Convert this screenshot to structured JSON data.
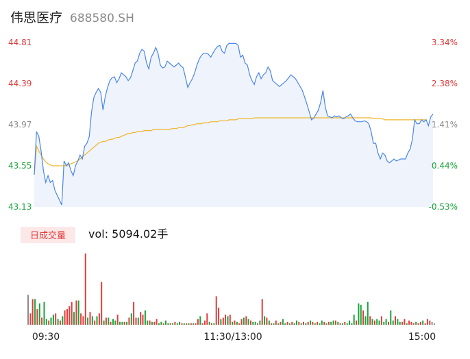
{
  "stock": {
    "name": "伟思医疗",
    "code": "688580.SH"
  },
  "volume_panel": {
    "badge": "日成交量",
    "vol_text": "vol: 5094.02手"
  },
  "colors": {
    "price_line": "#4a86e8",
    "avg_line": "#f0b429",
    "area_fill": "#eef3fc",
    "up": "#e23b3b",
    "down": "#1aa43b",
    "neutral": "#8a8a8a",
    "badge_bg": "#fde8e8"
  },
  "chart_data": [
    {
      "type": "line",
      "title": "",
      "x_ticks": [
        "09:30",
        "11:30/13:00",
        "15:00"
      ],
      "y_ticks_left": [
        "44.81",
        "44.39",
        "43.97",
        "43.55",
        "43.13"
      ],
      "y_ticks_right": [
        "3.34%",
        "2.38%",
        "1.41%",
        "0.44%",
        "-0.53%"
      ],
      "ylim": [
        43.13,
        44.81
      ],
      "series": [
        {
          "key": "price",
          "values": [
            43.46,
            43.9,
            43.85,
            43.7,
            43.5,
            43.38,
            43.45,
            43.38,
            43.4,
            43.3,
            43.25,
            43.2,
            43.15,
            43.6,
            43.55,
            43.58,
            43.5,
            43.45,
            43.55,
            43.6,
            43.66,
            43.62,
            43.75,
            43.78,
            43.85,
            44.1,
            44.25,
            44.3,
            44.34,
            44.3,
            44.12,
            44.26,
            44.35,
            44.42,
            44.45,
            44.46,
            44.4,
            44.44,
            44.5,
            44.48,
            44.46,
            44.42,
            44.45,
            44.52,
            44.6,
            44.62,
            44.7,
            44.74,
            44.72,
            44.6,
            44.54,
            44.66,
            44.7,
            44.76,
            44.7,
            44.58,
            44.55,
            44.56,
            44.62,
            44.6,
            44.58,
            44.56,
            44.58,
            44.6,
            44.57,
            44.55,
            44.45,
            44.35,
            44.4,
            44.44,
            44.5,
            44.58,
            44.64,
            44.68,
            44.7,
            44.7,
            44.69,
            44.66,
            44.7,
            44.74,
            44.77,
            44.78,
            44.72,
            44.7,
            44.78,
            44.8,
            44.8,
            44.8,
            44.8,
            44.78,
            44.66,
            44.68,
            44.6,
            44.58,
            44.48,
            44.42,
            44.38,
            44.46,
            44.5,
            44.44,
            44.48,
            44.5,
            44.56,
            44.52,
            44.42,
            44.4,
            44.38,
            44.36,
            44.38,
            44.4,
            44.42,
            44.45,
            44.48,
            44.46,
            44.44,
            44.4,
            44.36,
            44.32,
            44.25,
            44.18,
            44.1,
            44.02,
            44.04,
            44.08,
            44.12,
            44.2,
            44.32,
            44.15,
            44.06,
            44.05,
            44.04,
            44.06,
            44.05,
            44.06,
            44.04,
            44.03,
            44.05,
            44.06,
            44.08,
            44.04,
            44.01,
            44.0,
            44.0,
            44.0,
            44.01,
            44.0,
            43.98,
            43.9,
            43.78,
            43.78,
            43.68,
            43.62,
            43.68,
            43.66,
            43.6,
            43.58,
            43.6,
            43.62,
            43.6,
            43.61,
            43.62,
            43.62,
            43.62,
            43.68,
            43.72,
            43.82,
            44.02,
            43.98,
            43.98,
            44.02,
            44.0,
            44.02,
            43.96,
            44.05,
            44.08
          ]
        },
        {
          "key": "average",
          "values": [
            43.46,
            43.75,
            43.7,
            43.66,
            43.62,
            43.59,
            43.57,
            43.56,
            43.55,
            43.55,
            43.55,
            43.55,
            43.55,
            43.55,
            43.55,
            43.56,
            43.57,
            43.58,
            43.59,
            43.6,
            43.62,
            43.64,
            43.66,
            43.68,
            43.7,
            43.72,
            43.74,
            43.76,
            43.78,
            43.79,
            43.8,
            43.8,
            43.81,
            43.82,
            43.82,
            43.83,
            43.84,
            43.84,
            43.85,
            43.86,
            43.87,
            43.88,
            43.88,
            43.89,
            43.89,
            43.9,
            43.9,
            43.9,
            43.91,
            43.91,
            43.91,
            43.91,
            43.92,
            43.92,
            43.92,
            43.92,
            43.92,
            43.92,
            43.92,
            43.92,
            43.93,
            43.93,
            43.93,
            43.94,
            43.94,
            43.94,
            43.95,
            43.96,
            43.96,
            43.97,
            43.97,
            43.98,
            43.98,
            43.98,
            43.99,
            43.99,
            43.99,
            44.0,
            44.0,
            44.0,
            44.0,
            44.01,
            44.01,
            44.01,
            44.01,
            44.02,
            44.02,
            44.02,
            44.02,
            44.03,
            44.03,
            44.03,
            44.03,
            44.03,
            44.03,
            44.03,
            44.04,
            44.04,
            44.04,
            44.04,
            44.04,
            44.04,
            44.04,
            44.04,
            44.04,
            44.04,
            44.04,
            44.04,
            44.04,
            44.04,
            44.04,
            44.04,
            44.04,
            44.04,
            44.04,
            44.04,
            44.04,
            44.04,
            44.04,
            44.04,
            44.04,
            44.04,
            44.04,
            44.04,
            44.04,
            44.04,
            44.04,
            44.04,
            44.04,
            44.04,
            44.04,
            44.04,
            44.04,
            44.04,
            44.04,
            44.04,
            44.04,
            44.04,
            44.04,
            44.04,
            44.04,
            44.04,
            44.04,
            44.04,
            44.04,
            44.04,
            44.04,
            44.04,
            44.03,
            44.03,
            44.03,
            44.03,
            44.03,
            44.02,
            44.02,
            44.02,
            44.02,
            44.02,
            44.02,
            44.02,
            44.02,
            44.02,
            44.02,
            44.02,
            44.02,
            44.02,
            44.02,
            44.02,
            44.02,
            44.02,
            44.02,
            44.02
          ]
        }
      ]
    },
    {
      "type": "bar",
      "title": "",
      "volume": [
        0.42,
        0.16,
        0.36,
        0.36,
        0.22,
        0.3,
        0.1,
        0.32,
        0.08,
        0.06,
        0.1,
        0.14,
        0.16,
        0.08,
        0.06,
        0.12,
        0.2,
        0.22,
        0.26,
        0.32,
        0.18,
        0.34,
        0.34,
        0.16,
        0.12,
        1.0,
        0.1,
        0.18,
        0.12,
        0.06,
        0.12,
        0.16,
        0.6,
        0.06,
        0.1,
        0.1,
        0.04,
        0.08,
        0.06,
        0.14,
        0.04,
        0.04,
        0.04,
        0.04,
        0.1,
        0.16,
        0.32,
        0.1,
        0.1,
        0.18,
        0.14,
        0.2,
        0.06,
        0.06,
        0.04,
        0.04,
        0.08,
        0.02,
        0.04,
        0.02,
        0.06,
        0.02,
        0.02,
        0.02,
        0.04,
        0.02,
        0.04,
        0.02,
        0.02,
        0.02,
        0.02,
        0.02,
        0.02,
        0.02,
        0.08,
        0.12,
        0.02,
        0.06,
        0.16,
        0.04,
        0.02,
        0.02,
        0.4,
        0.24,
        0.08,
        0.1,
        0.14,
        0.12,
        0.14,
        0.04,
        0.06,
        0.04,
        0.02,
        0.08,
        0.1,
        0.12,
        0.08,
        0.06,
        0.04,
        0.04,
        0.02,
        0.06,
        0.36,
        0.12,
        0.1,
        0.06,
        0.02,
        0.02,
        0.06,
        0.02,
        0.04,
        0.08,
        0.02,
        0.04,
        0.02,
        0.04,
        0.02,
        0.06,
        0.04,
        0.02,
        0.04,
        0.02,
        0.04,
        0.06,
        0.04,
        0.02,
        0.04,
        0.02,
        0.06,
        0.04,
        0.02,
        0.04,
        0.04,
        0.06,
        0.06,
        0.04,
        0.02,
        0.02,
        0.04,
        0.02,
        0.06,
        0.02,
        0.14,
        0.06,
        0.3,
        0.28,
        0.2,
        0.12,
        0.32,
        0.12,
        0.08,
        0.06,
        0.08,
        0.06,
        0.12,
        0.04,
        0.08,
        0.04,
        0.2,
        0.06,
        0.12,
        0.08,
        0.04,
        0.04,
        0.08,
        0.02,
        0.06,
        0.04,
        0.02,
        0.04,
        0.02,
        0.04,
        0.06,
        0.02,
        0.08,
        0.06,
        0.04,
        0.02
      ],
      "direction": [
        "n",
        "u",
        "u",
        "d",
        "u",
        "d",
        "u",
        "d",
        "d",
        "u",
        "d",
        "d",
        "u",
        "d",
        "u",
        "d",
        "u",
        "u",
        "u",
        "u",
        "d",
        "u",
        "d",
        "u",
        "u",
        "u",
        "d",
        "u",
        "d",
        "u",
        "d",
        "u",
        "u",
        "d",
        "u",
        "d",
        "u",
        "d",
        "d",
        "u",
        "d",
        "d",
        "u",
        "d",
        "u",
        "d",
        "u",
        "u",
        "d",
        "u",
        "u",
        "d",
        "d",
        "u",
        "d",
        "u",
        "u",
        "d",
        "d",
        "u",
        "d",
        "d",
        "u",
        "d",
        "u",
        "d",
        "d",
        "u",
        "d",
        "u",
        "d",
        "u",
        "d",
        "u",
        "u",
        "d",
        "u",
        "u",
        "u",
        "d",
        "u",
        "d",
        "u",
        "u",
        "d",
        "u",
        "u",
        "d",
        "u",
        "d",
        "u",
        "d",
        "u",
        "u",
        "d",
        "u",
        "d",
        "u",
        "d",
        "d",
        "u",
        "d",
        "u",
        "d",
        "u",
        "d",
        "u",
        "d",
        "u",
        "d",
        "u",
        "d",
        "d",
        "u",
        "d",
        "u",
        "d",
        "d",
        "u",
        "d",
        "u",
        "d",
        "u",
        "d",
        "u",
        "d",
        "u",
        "d",
        "d",
        "u",
        "d",
        "u",
        "d",
        "d",
        "u",
        "d",
        "u",
        "d",
        "u",
        "d",
        "d",
        "d",
        "d",
        "u",
        "d",
        "d",
        "u",
        "d",
        "d",
        "u",
        "d",
        "u",
        "d",
        "d",
        "u",
        "d",
        "d",
        "u",
        "d",
        "d",
        "u",
        "d",
        "d",
        "u",
        "u",
        "d",
        "u",
        "u",
        "u",
        "d",
        "u",
        "u",
        "d",
        "u",
        "u",
        "u"
      ]
    }
  ]
}
